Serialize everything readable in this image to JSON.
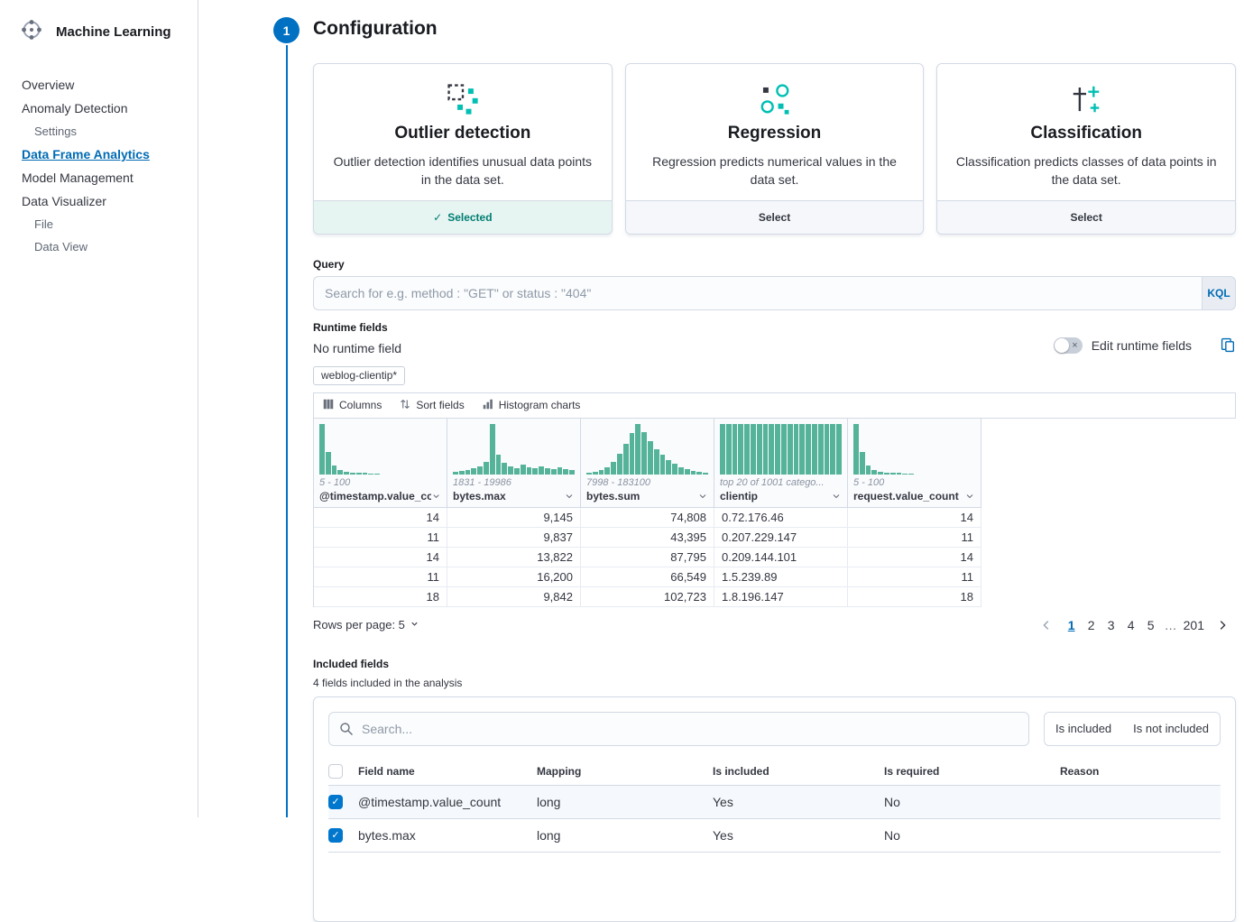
{
  "colors": {
    "accent_blue": "#0071C2",
    "link_blue": "#006BB4",
    "histogram_teal": "#54B399",
    "selected_teal": "#017D73"
  },
  "sidebar": {
    "title": "Machine Learning",
    "items": [
      {
        "label": "Overview",
        "indent": false,
        "active": false
      },
      {
        "label": "Anomaly Detection",
        "indent": false,
        "active": false
      },
      {
        "label": "Settings",
        "indent": true,
        "active": false
      },
      {
        "label": "Data Frame Analytics",
        "indent": false,
        "active": true
      },
      {
        "label": "Model Management",
        "indent": false,
        "active": false
      },
      {
        "label": "Data Visualizer",
        "indent": false,
        "active": false
      },
      {
        "label": "File",
        "indent": true,
        "active": false
      },
      {
        "label": "Data View",
        "indent": true,
        "active": false
      }
    ]
  },
  "step": {
    "number": "1",
    "title": "Configuration"
  },
  "cards": [
    {
      "title": "Outlier detection",
      "description": "Outlier detection identifies unusual data points in the data set.",
      "footer_label": "Selected",
      "selected": true
    },
    {
      "title": "Regression",
      "description": "Regression predicts numerical values in the data set.",
      "footer_label": "Select",
      "selected": false
    },
    {
      "title": "Classification",
      "description": "Classification predicts classes of data points in the data set.",
      "footer_label": "Select",
      "selected": false
    }
  ],
  "query": {
    "label": "Query",
    "placeholder": "Search for e.g. method : \"GET\" or status : \"404\"",
    "kql_label": "KQL"
  },
  "runtime_fields": {
    "label": "Runtime fields",
    "status": "No runtime field",
    "edit_label": "Edit runtime fields"
  },
  "index_pattern_chip": "weblog-clientip*",
  "grid": {
    "toolbar": {
      "columns_label": "Columns",
      "sort_label": "Sort fields",
      "histogram_label": "Histogram charts"
    },
    "columns": [
      {
        "name": "@timestamp.value_cou",
        "range": "5 - 100",
        "align": "right",
        "histogram": [
          100,
          44,
          18,
          9,
          5,
          3,
          2,
          2,
          1,
          1,
          0,
          0,
          0,
          0,
          0,
          0,
          0,
          0,
          0,
          0
        ]
      },
      {
        "name": "bytes.max",
        "range": "1831 - 19986",
        "align": "right",
        "histogram": [
          5,
          7,
          9,
          12,
          16,
          24,
          100,
          38,
          22,
          16,
          12,
          19,
          14,
          11,
          16,
          12,
          10,
          13,
          10,
          8
        ]
      },
      {
        "name": "bytes.sum",
        "range": "7998 - 183100",
        "align": "right",
        "histogram": [
          2,
          4,
          8,
          14,
          24,
          40,
          60,
          82,
          100,
          84,
          66,
          50,
          38,
          28,
          20,
          14,
          10,
          7,
          4,
          2
        ]
      },
      {
        "name": "clientip",
        "range": "top 20 of 1001 catego...",
        "align": "left",
        "histogram": [
          100,
          100,
          100,
          100,
          100,
          100,
          100,
          100,
          100,
          100,
          100,
          100,
          100,
          100,
          100,
          100,
          100,
          100,
          100,
          100
        ]
      },
      {
        "name": "request.value_count",
        "range": "5 - 100",
        "align": "right",
        "histogram": [
          100,
          44,
          18,
          9,
          5,
          3,
          2,
          2,
          1,
          1,
          0,
          0,
          0,
          0,
          0,
          0,
          0,
          0,
          0,
          0
        ]
      }
    ],
    "rows": [
      [
        "14",
        "9,145",
        "74,808",
        "0.72.176.46",
        "14"
      ],
      [
        "11",
        "9,837",
        "43,395",
        "0.207.229.147",
        "11"
      ],
      [
        "14",
        "13,822",
        "87,795",
        "0.209.144.101",
        "14"
      ],
      [
        "11",
        "16,200",
        "66,549",
        "1.5.239.89",
        "11"
      ],
      [
        "18",
        "9,842",
        "102,723",
        "1.8.196.147",
        "18"
      ]
    ],
    "rows_per_page_label": "Rows per page: 5",
    "pagination_pages": [
      "1",
      "2",
      "3",
      "4",
      "5",
      "…",
      "201"
    ],
    "active_page": "1"
  },
  "included_fields": {
    "label": "Included fields",
    "summary": "4 fields included in the analysis",
    "search_placeholder": "Search...",
    "filters": [
      "Is included",
      "Is not included"
    ],
    "table": {
      "headers": [
        "Field name",
        "Mapping",
        "Is included",
        "Is required",
        "Reason"
      ],
      "rows": [
        {
          "field": "@timestamp.value_count",
          "mapping": "long",
          "included": "Yes",
          "required": "No",
          "reason": "",
          "checked": true,
          "highlight": true
        },
        {
          "field": "bytes.max",
          "mapping": "long",
          "included": "Yes",
          "required": "No",
          "reason": "",
          "checked": true,
          "highlight": false
        }
      ]
    }
  }
}
